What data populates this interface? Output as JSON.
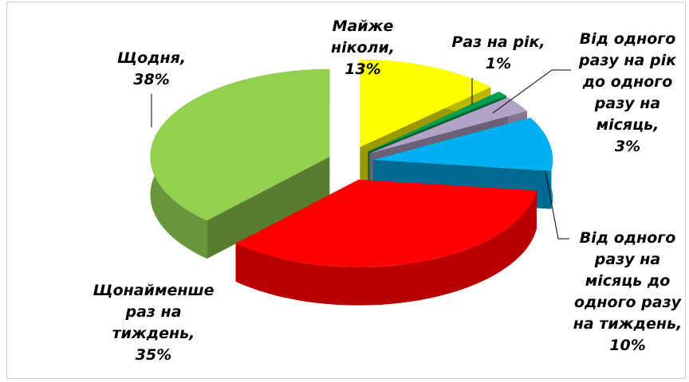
{
  "chart_data": {
    "type": "pie3d",
    "categories": [
      "Майже ніколи,",
      "Раз на рік,",
      "Від одного разу на рік до одного разу на місяць,",
      "Від одного разу на місяць до одного разу на тиждень,",
      "Щонайменше раз на тиждень,",
      "Щодня,"
    ],
    "values": [
      13,
      1,
      3,
      10,
      35,
      38
    ],
    "value_labels": [
      "13%",
      "1%",
      "3%",
      "10%",
      "35%",
      "38%"
    ],
    "colors": [
      "#ffff00",
      "#00a050",
      "#b3a2c7",
      "#00b0f0",
      "#ff0000",
      "#92d050"
    ]
  }
}
